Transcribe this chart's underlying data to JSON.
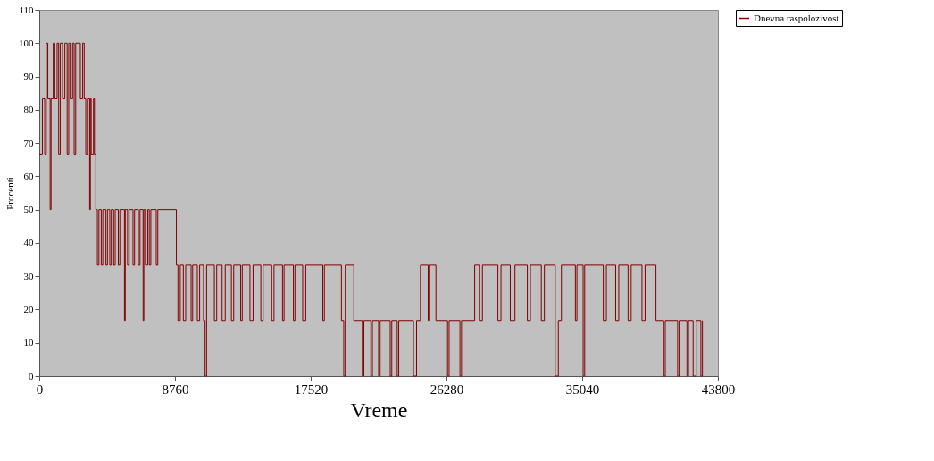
{
  "chart_data": {
    "type": "step",
    "xlabel": "Vreme",
    "ylabel": "Procenti",
    "x": [
      0,
      200,
      350,
      450,
      550,
      700,
      760,
      900,
      1000,
      1150,
      1250,
      1350,
      1500,
      1650,
      1800,
      1900,
      2000,
      2150,
      2250,
      2350,
      2650,
      2800,
      2900,
      3000,
      3100,
      3250,
      3300,
      3350,
      3500,
      3560,
      3650,
      3750,
      3850,
      4000,
      4100,
      4300,
      4400,
      4550,
      4650,
      4800,
      4900,
      5100,
      5200,
      5500,
      5550,
      5700,
      5800,
      6050,
      6150,
      6400,
      6500,
      6700,
      6750,
      6850,
      7000,
      7100,
      7200,
      7550,
      7650,
      8850,
      8950,
      9100,
      9300,
      9450,
      9800,
      9900,
      10200,
      10350,
      10600,
      10700,
      10800,
      11300,
      11450,
      11800,
      12000,
      12400,
      12550,
      13000,
      13100,
      13600,
      13800,
      14300,
      14450,
      15000,
      15150,
      15700,
      15800,
      16400,
      16500,
      17000,
      17200,
      18300,
      18400,
      19500,
      19650,
      19750,
      20300,
      20850,
      20950,
      21400,
      21500,
      21900,
      22000,
      22650,
      22750,
      23100,
      23200,
      24150,
      24350,
      24600,
      25100,
      25200,
      25600,
      26350,
      26450,
      27150,
      27250,
      28100,
      28400,
      28600,
      29600,
      29800,
      30400,
      30700,
      31500,
      31700,
      32400,
      32600,
      33300,
      33500,
      33700,
      34600,
      34700,
      35100,
      35200,
      36400,
      36600,
      37200,
      37400,
      38000,
      38200,
      38900,
      39100,
      39800,
      40300,
      40400,
      41200,
      41300,
      41800,
      41900,
      42200,
      42400,
      42700,
      42800
    ],
    "series": [
      {
        "name": "Dnevna raspolozivost",
        "color": "#800000",
        "values": [
          66.7,
          83.3,
          66.7,
          100,
          83.3,
          50,
          83.3,
          100,
          83.3,
          100,
          66.7,
          100,
          83.3,
          100,
          66.7,
          100,
          83.3,
          100,
          66.7,
          100,
          83.3,
          100,
          83.3,
          66.7,
          83.3,
          50,
          83.3,
          66.7,
          83.3,
          66.7,
          50,
          33.3,
          50,
          33.3,
          50,
          33.3,
          50,
          33.3,
          50,
          33.3,
          50,
          33.3,
          50,
          16.7,
          50,
          33.3,
          50,
          33.3,
          50,
          33.3,
          50,
          16.7,
          50,
          33.3,
          50,
          33.3,
          50,
          33.3,
          50,
          33.3,
          16.7,
          33.3,
          16.7,
          33.3,
          16.7,
          33.3,
          16.7,
          33.3,
          16.7,
          0,
          33.3,
          16.7,
          33.3,
          16.7,
          33.3,
          16.7,
          33.3,
          16.7,
          33.3,
          16.7,
          33.3,
          16.7,
          33.3,
          16.7,
          33.3,
          16.7,
          33.3,
          16.7,
          33.3,
          16.7,
          33.3,
          16.7,
          33.3,
          16.7,
          0,
          33.3,
          16.7,
          0,
          16.7,
          0,
          16.7,
          0,
          16.7,
          0,
          16.7,
          0,
          16.7,
          0,
          16.7,
          33.3,
          16.7,
          33.3,
          16.7,
          0,
          16.7,
          0,
          16.7,
          33.3,
          16.7,
          33.3,
          16.7,
          33.3,
          16.7,
          33.3,
          16.7,
          33.3,
          16.7,
          33.3,
          0,
          16.7,
          33.3,
          16.7,
          33.3,
          0,
          33.3,
          16.7,
          33.3,
          16.7,
          33.3,
          16.7,
          33.3,
          16.7,
          33.3,
          16.7,
          0,
          16.7,
          0,
          16.7,
          0,
          16.7,
          0,
          16.7,
          0,
          16.7
        ]
      }
    ],
    "xlim": [
      0,
      43800
    ],
    "xticks": [
      0,
      8760,
      17520,
      26280,
      35040,
      43800
    ],
    "ylim": [
      0,
      110
    ],
    "yticks": [
      0,
      10,
      20,
      30,
      40,
      50,
      60,
      70,
      80,
      90,
      100,
      110
    ],
    "grid": false,
    "legend": "top right",
    "line_style": "solid",
    "marker": "none"
  }
}
